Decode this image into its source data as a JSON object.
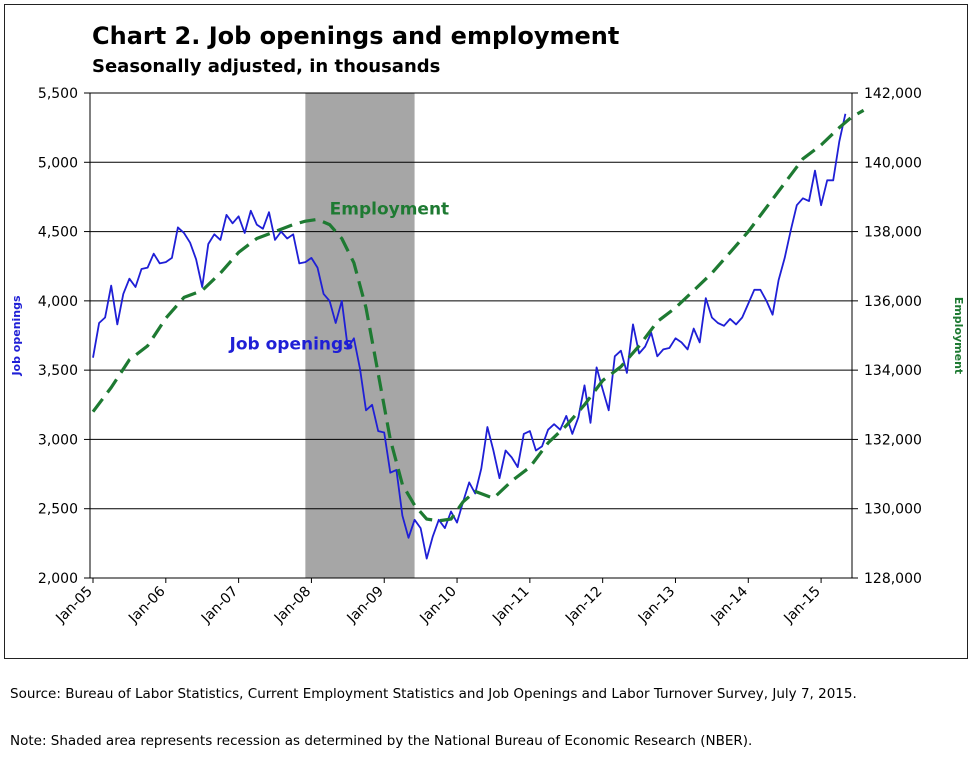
{
  "chart_data": {
    "type": "line",
    "title": "Chart 2. Job openings and employment",
    "subtitle": "Seasonally adjusted, in thousands",
    "ylabel_left": "Job openings",
    "ylabel_right": "Employment",
    "ylim_left": [
      2000,
      5500
    ],
    "ylim_right": [
      128000,
      142000
    ],
    "yticks_left": [
      "2,000",
      "2,500",
      "3,000",
      "3,500",
      "4,000",
      "4,500",
      "5,000",
      "5,500"
    ],
    "yticks_right": [
      "128,000",
      "130,000",
      "132,000",
      "134,000",
      "136,000",
      "138,000",
      "140,000",
      "142,000"
    ],
    "xticks": [
      "Jan-05",
      "Jan-06",
      "Jan-07",
      "Jan-08",
      "Jan-09",
      "Jan-10",
      "Jan-11",
      "Jan-12",
      "Jan-13",
      "Jan-14",
      "Jan-15"
    ],
    "x_start": "2005-01",
    "x_end": "2015-05",
    "grid": "horizontal",
    "shading": [
      {
        "start": "2007-12",
        "end": "2009-06",
        "color": "#a6a6a6"
      }
    ],
    "series": [
      {
        "name": "Job openings",
        "axis": "left",
        "color": "#1f1fd6",
        "style": "solid",
        "label_months": 22.5,
        "label_value": 3650,
        "x": [
          "2005-01",
          "2005-02",
          "2005-03",
          "2005-04",
          "2005-05",
          "2005-06",
          "2005-07",
          "2005-08",
          "2005-09",
          "2005-10",
          "2005-11",
          "2005-12",
          "2006-01",
          "2006-02",
          "2006-03",
          "2006-04",
          "2006-05",
          "2006-06",
          "2006-07",
          "2006-08",
          "2006-09",
          "2006-10",
          "2006-11",
          "2006-12",
          "2007-01",
          "2007-02",
          "2007-03",
          "2007-04",
          "2007-05",
          "2007-06",
          "2007-07",
          "2007-08",
          "2007-09",
          "2007-10",
          "2007-11",
          "2007-12",
          "2008-01",
          "2008-02",
          "2008-03",
          "2008-04",
          "2008-05",
          "2008-06",
          "2008-07",
          "2008-08",
          "2008-09",
          "2008-10",
          "2008-11",
          "2008-12",
          "2009-01",
          "2009-02",
          "2009-03",
          "2009-04",
          "2009-05",
          "2009-06",
          "2009-07",
          "2009-08",
          "2009-09",
          "2009-10",
          "2009-11",
          "2009-12",
          "2010-01",
          "2010-02",
          "2010-03",
          "2010-04",
          "2010-05",
          "2010-06",
          "2010-07",
          "2010-08",
          "2010-09",
          "2010-10",
          "2010-11",
          "2010-12",
          "2011-01",
          "2011-02",
          "2011-03",
          "2011-04",
          "2011-05",
          "2011-06",
          "2011-07",
          "2011-08",
          "2011-09",
          "2011-10",
          "2011-11",
          "2011-12",
          "2012-01",
          "2012-02",
          "2012-03",
          "2012-04",
          "2012-05",
          "2012-06",
          "2012-07",
          "2012-08",
          "2012-09",
          "2012-10",
          "2012-11",
          "2012-12",
          "2013-01",
          "2013-02",
          "2013-03",
          "2013-04",
          "2013-05",
          "2013-06",
          "2013-07",
          "2013-08",
          "2013-09",
          "2013-10",
          "2013-11",
          "2013-12",
          "2014-01",
          "2014-02",
          "2014-03",
          "2014-04",
          "2014-05",
          "2014-06",
          "2014-07",
          "2014-08",
          "2014-09",
          "2014-10",
          "2014-11",
          "2014-12",
          "2015-01",
          "2015-02",
          "2015-03",
          "2015-04",
          "2015-05"
        ],
        "values": [
          3590,
          3840,
          3880,
          4110,
          3830,
          4050,
          4160,
          4100,
          4230,
          4240,
          4340,
          4270,
          4280,
          4310,
          4530,
          4490,
          4420,
          4300,
          4100,
          4410,
          4480,
          4440,
          4620,
          4560,
          4610,
          4490,
          4650,
          4550,
          4520,
          4640,
          4440,
          4500,
          4450,
          4480,
          4270,
          4280,
          4310,
          4240,
          4050,
          4000,
          3840,
          4000,
          3660,
          3730,
          3510,
          3210,
          3250,
          3060,
          3050,
          2760,
          2780,
          2450,
          2290,
          2420,
          2360,
          2140,
          2300,
          2420,
          2360,
          2480,
          2400,
          2550,
          2690,
          2610,
          2790,
          3090,
          2920,
          2720,
          2920,
          2870,
          2800,
          3040,
          3060,
          2920,
          2950,
          3070,
          3110,
          3070,
          3170,
          3040,
          3160,
          3390,
          3120,
          3520,
          3360,
          3210,
          3600,
          3640,
          3480,
          3830,
          3620,
          3670,
          3770,
          3600,
          3650,
          3660,
          3730,
          3700,
          3650,
          3800,
          3700,
          4020,
          3880,
          3840,
          3820,
          3870,
          3830,
          3880,
          3980,
          4080,
          4080,
          4000,
          3900,
          4150,
          4310,
          4510,
          4690,
          4740,
          4720,
          4940,
          4690,
          4870,
          4870,
          5150,
          5350
        ]
      },
      {
        "name": "Employment",
        "axis": "right",
        "color": "#1e7a32",
        "style": "dashed",
        "label_months": 39,
        "label_value": 138500,
        "x_months": [
          0,
          3,
          6,
          9,
          12,
          15,
          18,
          21,
          24,
          27,
          30,
          33,
          35,
          37,
          39,
          41,
          43,
          45,
          47,
          49,
          51,
          53,
          55,
          57,
          59,
          61,
          63,
          66,
          69,
          72,
          75,
          78,
          81,
          84,
          87,
          90,
          93,
          96,
          99,
          102,
          105,
          108,
          111,
          114,
          117,
          120,
          123,
          125,
          127
        ],
        "values": [
          132800,
          133500,
          134300,
          134700,
          135500,
          136100,
          136300,
          136800,
          137400,
          137800,
          138000,
          138200,
          138300,
          138350,
          138200,
          137800,
          137100,
          135800,
          133900,
          132000,
          130700,
          130100,
          129700,
          129650,
          129700,
          130200,
          130500,
          130300,
          130800,
          131200,
          131900,
          132400,
          133000,
          133700,
          134100,
          134700,
          135400,
          135800,
          136300,
          136800,
          137400,
          138000,
          138700,
          139400,
          140100,
          140500,
          141000,
          141300,
          141500
        ]
      }
    ]
  },
  "footer": {
    "source": "Source: Bureau of Labor Statistics, Current Employment Statistics and Job Openings and Labor Turnover Survey, July 7, 2015.",
    "note": "Note: Shaded area represents recession as determined by the National Bureau of Economic Research (NBER)."
  }
}
